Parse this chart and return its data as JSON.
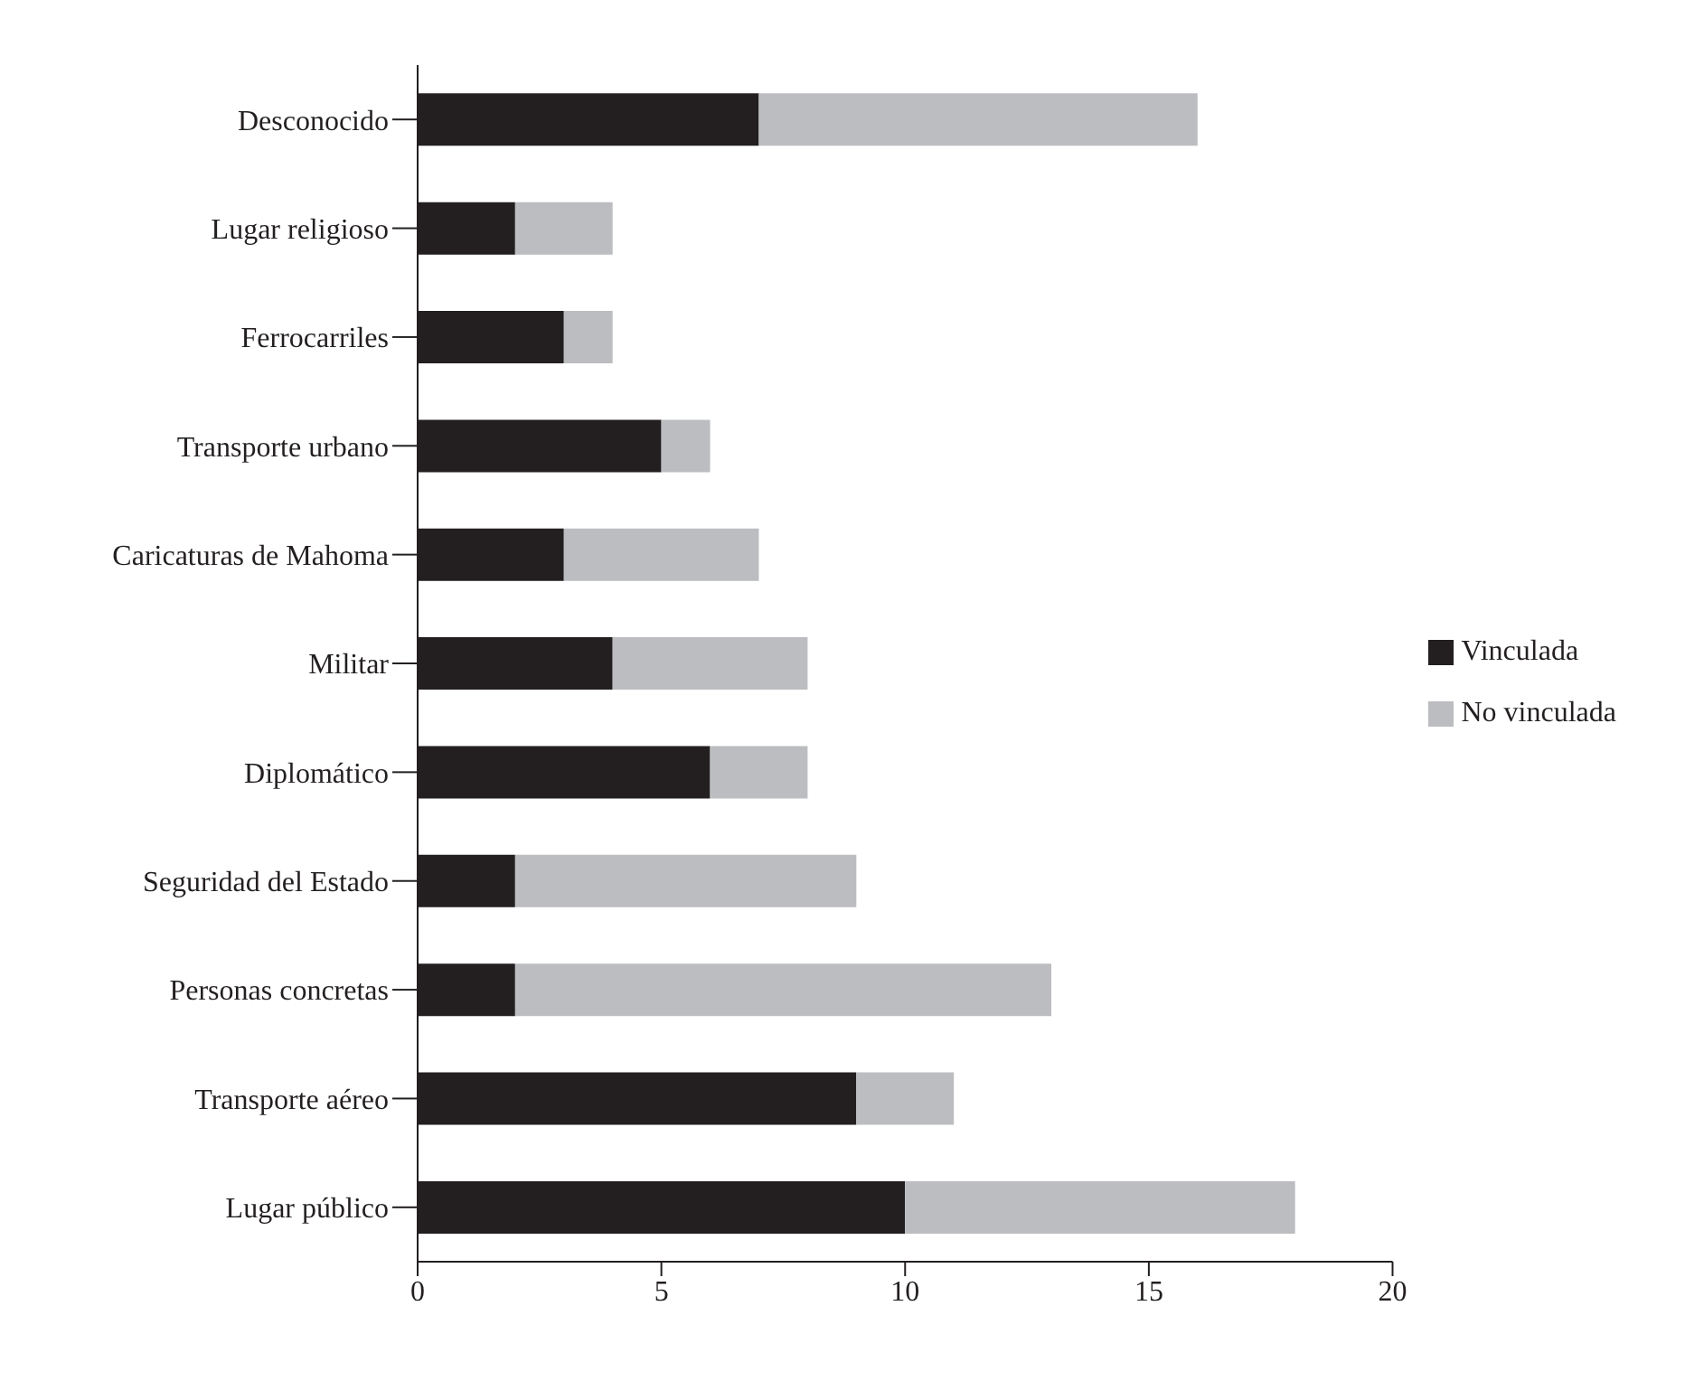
{
  "chart_data": {
    "type": "bar",
    "orientation": "horizontal",
    "stacked": true,
    "categories": [
      "Desconocido",
      "Lugar religioso",
      "Ferrocarriles",
      "Transporte urbano",
      "Caricaturas de Mahoma",
      "Militar",
      "Diplomático",
      "Seguridad del Estado",
      "Personas concretas",
      "Transporte aéreo",
      "Lugar público"
    ],
    "series": [
      {
        "name": "Vinculada",
        "color": "#231f20",
        "values": [
          7,
          2,
          3,
          5,
          3,
          4,
          6,
          2,
          2,
          9,
          10
        ]
      },
      {
        "name": "No vinculada",
        "color": "#bcbdc0",
        "values": [
          9,
          2,
          1,
          1,
          4,
          4,
          2,
          7,
          11,
          2,
          8
        ]
      }
    ],
    "xlim": [
      0,
      20
    ],
    "xticks": [
      0,
      5,
      10,
      15,
      20
    ],
    "grid": false,
    "legend": "right"
  }
}
